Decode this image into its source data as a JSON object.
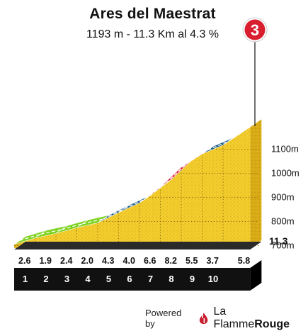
{
  "chart_data": {
    "type": "area",
    "title": "Ares del Maestrat",
    "subtitle": "1193 m - 11.3 Km al 4.3 %",
    "climb_number": "3",
    "total_distance_label": "11.3",
    "x_ticks": [
      "1",
      "2",
      "3",
      "4",
      "5",
      "6",
      "7",
      "8",
      "9",
      "10"
    ],
    "segments": [
      {
        "km_start": 0,
        "km_end": 1,
        "gradient": 2.6,
        "label": "2.6"
      },
      {
        "km_start": 1,
        "km_end": 2,
        "gradient": 1.9,
        "label": "1.9"
      },
      {
        "km_start": 2,
        "km_end": 3,
        "gradient": 2.4,
        "label": "2.4"
      },
      {
        "km_start": 3,
        "km_end": 4,
        "gradient": 2.0,
        "label": "2.0"
      },
      {
        "km_start": 4,
        "km_end": 5,
        "gradient": 4.3,
        "label": "4.3"
      },
      {
        "km_start": 5,
        "km_end": 6,
        "gradient": 4.0,
        "label": "4.0"
      },
      {
        "km_start": 6,
        "km_end": 7,
        "gradient": 6.6,
        "label": "6.6"
      },
      {
        "km_start": 7,
        "km_end": 8,
        "gradient": 8.2,
        "label": "8.2"
      },
      {
        "km_start": 8,
        "km_end": 9,
        "gradient": 5.5,
        "label": "5.5"
      },
      {
        "km_start": 9,
        "km_end": 10,
        "gradient": 3.7,
        "label": "3.7"
      },
      {
        "km_start": 10,
        "km_end": 11.3,
        "gradient": 5.8,
        "label": "5.8"
      }
    ],
    "y_ticks": [
      {
        "value": 700,
        "label": "700m"
      },
      {
        "value": 800,
        "label": "800m"
      },
      {
        "value": 900,
        "label": "900m"
      },
      {
        "value": 1000,
        "label": "1000m"
      },
      {
        "value": 1100,
        "label": "1100m"
      }
    ],
    "xlim": [
      0,
      11.3
    ],
    "ylim": [
      660,
      1193
    ],
    "gradient_colors": [
      {
        "max": 3.0,
        "color": "#7ed321"
      },
      {
        "max": 5.0,
        "color": "#1f5f8b"
      },
      {
        "max": 99.0,
        "color": "#e0223a"
      }
    ]
  },
  "footer": {
    "powered_by": "Powered by",
    "brand_prefix": "La Flamme",
    "brand_suffix": "Rouge"
  }
}
